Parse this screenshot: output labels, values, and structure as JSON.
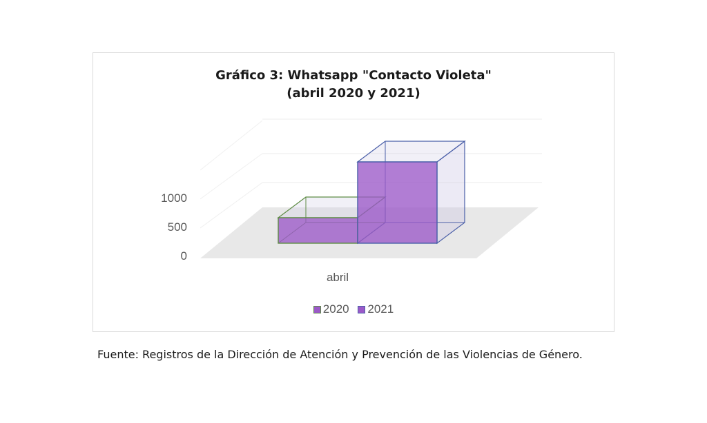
{
  "chart_data": {
    "type": "bar",
    "title_line1": "Gráfico 3: Whatsapp \"Contacto Violeta\"",
    "title_line2": "(abril 2020 y 2021)",
    "categories": [
      "abril"
    ],
    "series": [
      {
        "name": "2020",
        "values": [
          290
        ],
        "color": "#9b59c8",
        "edge": "#5e8c45"
      },
      {
        "name": "2021",
        "values": [
          930
        ],
        "color": "#9b59c8",
        "edge": "#4a5fa8"
      }
    ],
    "yticks": [
      "0",
      "500",
      "1000"
    ],
    "ylim": [
      0,
      1500
    ],
    "legend_position": "bottom",
    "grid": true
  },
  "source_note": "Fuente: Registros de la Dirección de Atención y Prevención de las Violencias de Género."
}
